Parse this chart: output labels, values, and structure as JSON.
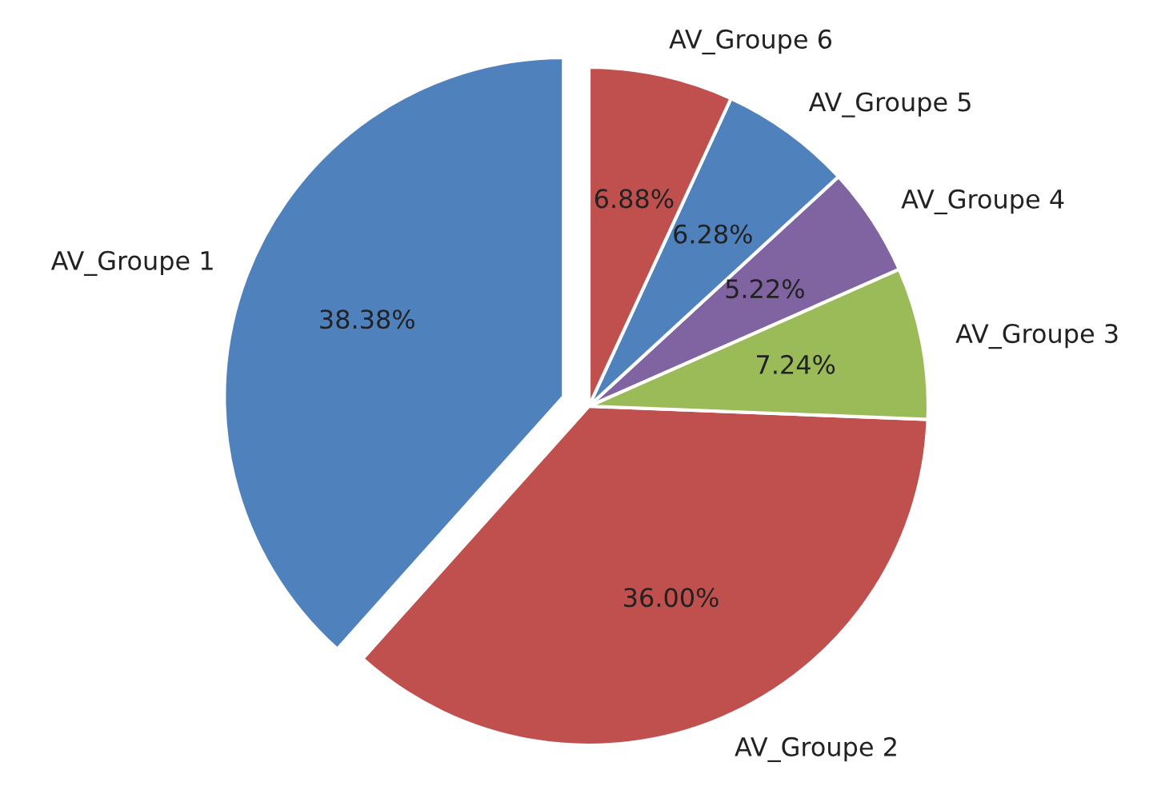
{
  "chart_data": {
    "type": "pie",
    "categories": [
      "AV_Groupe 1",
      "AV_Groupe 2",
      "AV_Groupe 3",
      "AV_Groupe 4",
      "AV_Groupe 5",
      "AV_Groupe 6"
    ],
    "values": [
      38.38,
      36.0,
      7.24,
      5.22,
      6.28,
      6.88
    ],
    "value_labels": [
      "38.38%",
      "36.00%",
      "7.24%",
      "5.22%",
      "6.28%",
      "6.88%"
    ],
    "colors": [
      "#4f81bd",
      "#c0504d",
      "#9bbb59",
      "#8064a2",
      "#4f81bd",
      "#c0504d"
    ]
  }
}
